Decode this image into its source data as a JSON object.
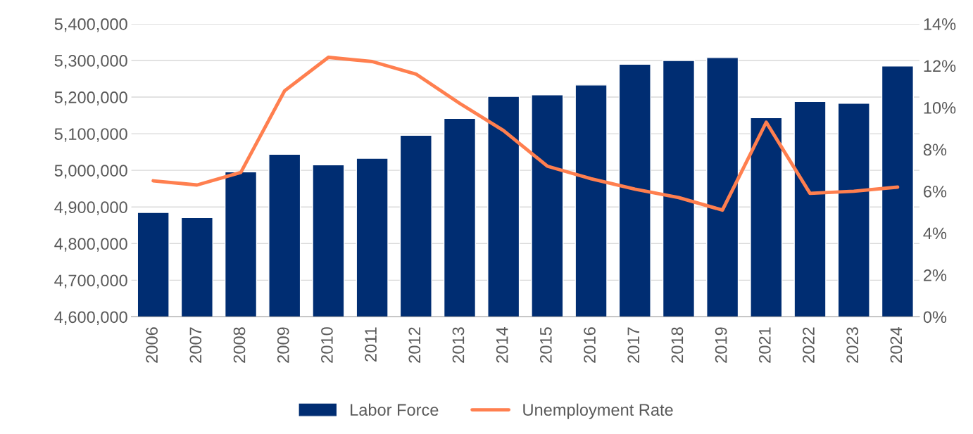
{
  "chart_data": {
    "type": "bar",
    "categories": [
      "2006",
      "2007",
      "2008",
      "2009",
      "2010",
      "2011",
      "2012",
      "2013",
      "2014",
      "2015",
      "2016",
      "2017",
      "2018",
      "2019",
      "2021",
      "2022",
      "2023",
      "2024"
    ],
    "series": [
      {
        "name": "Labor Force",
        "color": "#002d72",
        "values": [
          4885000,
          4871000,
          4996000,
          5044000,
          5015000,
          5033000,
          5096000,
          5142000,
          5202000,
          5206000,
          5233000,
          5290000,
          5300000,
          5308000,
          5144000,
          5188000,
          5183000,
          5285000
        ]
      },
      {
        "name": "Unemployment Rate",
        "type": "line",
        "axis": "y2",
        "color": "#ff7f4f",
        "values": [
          6.5,
          6.3,
          6.9,
          10.8,
          12.4,
          12.2,
          11.6,
          10.2,
          8.9,
          7.2,
          6.6,
          6.1,
          5.7,
          5.1,
          9.3,
          5.9,
          6.0,
          6.2
        ]
      }
    ],
    "ylim": [
      4600000,
      5400000
    ],
    "yticks": [
      {
        "value": 4600000,
        "label": "4,600,000"
      },
      {
        "value": 4700000,
        "label": "4,700,000"
      },
      {
        "value": 4800000,
        "label": "4,800,000"
      },
      {
        "value": 4900000,
        "label": "4,900,000"
      },
      {
        "value": 5000000,
        "label": "5,000,000"
      },
      {
        "value": 5100000,
        "label": "5,100,000"
      },
      {
        "value": 5200000,
        "label": "5,200,000"
      },
      {
        "value": 5300000,
        "label": "5,300,000"
      },
      {
        "value": 5400000,
        "label": "5,400,000"
      }
    ],
    "y2lim": [
      0,
      14
    ],
    "y2ticks": [
      {
        "value": 0,
        "label": "0%"
      },
      {
        "value": 2,
        "label": "2%"
      },
      {
        "value": 4,
        "label": "4%"
      },
      {
        "value": 6,
        "label": "6%"
      },
      {
        "value": 8,
        "label": "8%"
      },
      {
        "value": 10,
        "label": "10%"
      },
      {
        "value": 12,
        "label": "12%"
      },
      {
        "value": 14,
        "label": "14%"
      }
    ],
    "grid": "y",
    "legend": "bottom",
    "line_style": "solid"
  }
}
